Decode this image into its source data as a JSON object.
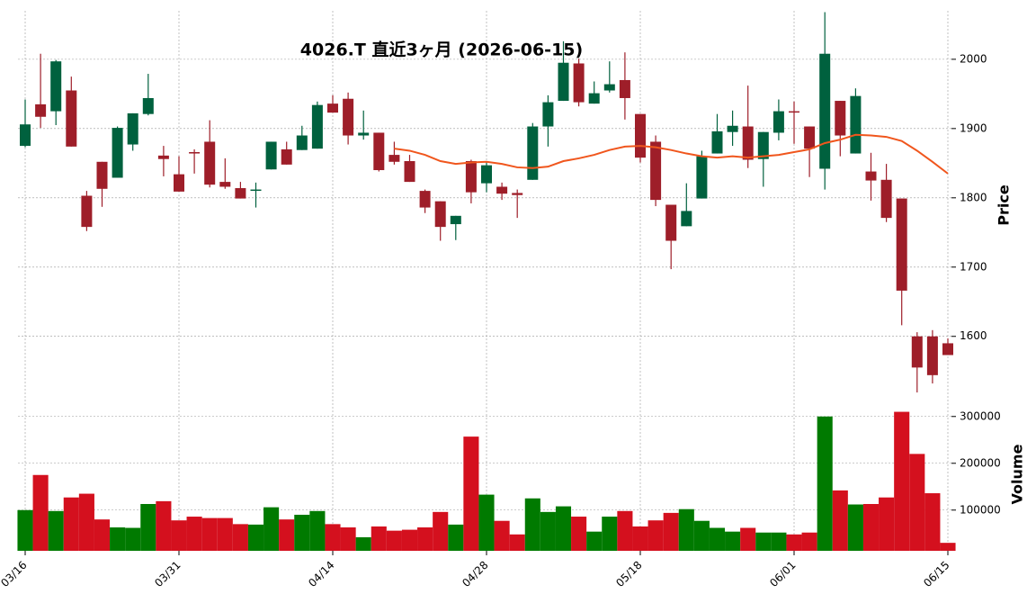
{
  "chart_data": {
    "type": "candlestick",
    "title": "4026.T  直近3ヶ月  (2026-06-15)",
    "categories": [
      "03/16",
      null,
      null,
      null,
      null,
      null,
      null,
      null,
      null,
      null,
      "03/31",
      null,
      null,
      null,
      null,
      null,
      null,
      null,
      null,
      null,
      "04/14",
      null,
      null,
      null,
      null,
      null,
      null,
      null,
      null,
      null,
      "04/28",
      null,
      null,
      null,
      null,
      null,
      null,
      null,
      null,
      null,
      "05/18",
      null,
      null,
      null,
      null,
      null,
      null,
      null,
      null,
      null,
      "06/01",
      null,
      null,
      null,
      null,
      null,
      null,
      null,
      null,
      null,
      "06/15"
    ],
    "open": [
      1875,
      1935,
      1925,
      1955,
      1803,
      1852,
      1829,
      1877,
      1921,
      1861,
      1834,
      1866,
      1881,
      1823,
      1814,
      1811,
      1841,
      1870,
      1869,
      1871,
      1936,
      1943,
      1890,
      1894,
      1862,
      1853,
      1810,
      1795,
      1762,
      1853,
      1821,
      1816,
      1807,
      1826,
      1903,
      1940,
      1994,
      1936,
      1955,
      1970,
      1921,
      1881,
      1790,
      1759,
      1799,
      1864,
      1895,
      1903,
      1856,
      1894,
      1925,
      1903,
      1842,
      1940,
      1864,
      1838,
      1826,
      1799,
      1600,
      1600,
      1590
    ],
    "high": [
      1942,
      2008,
      1999,
      1975,
      1810,
      1852,
      1903,
      1922,
      1979,
      1875,
      1860,
      1870,
      1912,
      1857,
      1823,
      1822,
      1881,
      1881,
      1904,
      1939,
      1948,
      1952,
      1926,
      1894,
      1881,
      1862,
      1812,
      1795,
      1774,
      1855,
      1852,
      1822,
      1812,
      1908,
      1948,
      2026,
      2001,
      1968,
      1997,
      2010,
      1921,
      1890,
      1790,
      1821,
      1868,
      1921,
      1926,
      1962,
      1895,
      1942,
      1939,
      1903,
      2068,
      1940,
      1958,
      1865,
      1849,
      1799,
      1606,
      1609,
      1597
    ],
    "low": [
      1873,
      1901,
      1905,
      1874,
      1752,
      1787,
      1829,
      1868,
      1919,
      1831,
      1809,
      1835,
      1815,
      1813,
      1799,
      1786,
      1841,
      1848,
      1869,
      1871,
      1923,
      1877,
      1884,
      1838,
      1848,
      1823,
      1778,
      1738,
      1739,
      1792,
      1808,
      1797,
      1771,
      1826,
      1874,
      1940,
      1932,
      1936,
      1952,
      1913,
      1851,
      1788,
      1697,
      1759,
      1799,
      1864,
      1875,
      1843,
      1816,
      1883,
      1878,
      1830,
      1812,
      1860,
      1864,
      1796,
      1765,
      1616,
      1519,
      1532,
      1573
    ],
    "close": [
      1906,
      1917,
      1997,
      1874,
      1758,
      1813,
      1901,
      1922,
      1944,
      1856,
      1809,
      1864,
      1819,
      1816,
      1799,
      1812,
      1881,
      1848,
      1890,
      1934,
      1923,
      1890,
      1894,
      1840,
      1852,
      1823,
      1786,
      1758,
      1774,
      1808,
      1847,
      1806,
      1804,
      1903,
      1938,
      1995,
      1938,
      1951,
      1964,
      1944,
      1858,
      1797,
      1738,
      1781,
      1860,
      1896,
      1904,
      1855,
      1895,
      1925,
      1924,
      1871,
      2008,
      1890,
      1947,
      1825,
      1771,
      1666,
      1555,
      1544,
      1573
    ],
    "up_color": "#00613e",
    "down_color": "#9e1e29",
    "ma": {
      "color": "#f0561d",
      "values": [
        null,
        null,
        null,
        null,
        null,
        null,
        null,
        null,
        null,
        null,
        null,
        null,
        null,
        null,
        null,
        null,
        null,
        null,
        null,
        null,
        null,
        null,
        null,
        null,
        1871,
        1868,
        1862,
        1853,
        1849,
        1851,
        1852,
        1849,
        1844,
        1843,
        1845,
        1853,
        1857,
        1862,
        1869,
        1874,
        1875,
        1873,
        1869,
        1864,
        1860,
        1858,
        1860,
        1858,
        1860,
        1862,
        1866,
        1870,
        1879,
        1884,
        1891,
        1890,
        1888,
        1882,
        1868,
        1852,
        1835
      ]
    },
    "ylabel": "Price",
    "ylim": [
      1510,
      2070
    ],
    "yticks": [
      1600,
      1700,
      1800,
      1900,
      2000
    ],
    "volume": {
      "ylabel": "Volume",
      "up_color": "#007a00",
      "down_color": "#d4101e",
      "values": [
        100000,
        175000,
        98000,
        127000,
        135000,
        80000,
        63000,
        62000,
        113000,
        119000,
        78000,
        86000,
        83000,
        83000,
        70000,
        69000,
        106000,
        80000,
        90000,
        98000,
        70000,
        63000,
        42000,
        65000,
        56000,
        58000,
        63000,
        96000,
        69000,
        257000,
        133000,
        77000,
        48000,
        125000,
        96000,
        108000,
        86000,
        54000,
        86000,
        98000,
        65000,
        78000,
        94000,
        102000,
        77000,
        62000,
        54000,
        62000,
        52000,
        52000,
        48000,
        52000,
        300000,
        142000,
        112000,
        113000,
        127000,
        310000,
        220000,
        136000,
        30000
      ],
      "ylim": [
        13000,
        338000
      ],
      "yticks": [
        100000,
        200000,
        300000
      ]
    },
    "grid": true
  }
}
